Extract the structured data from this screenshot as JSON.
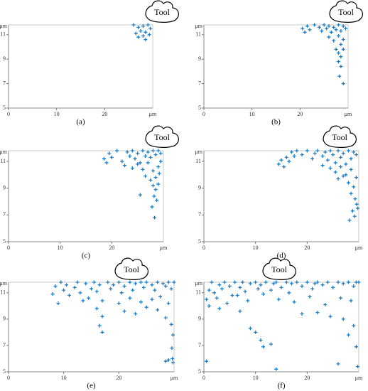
{
  "chart_data": [
    {
      "type": "scatter",
      "caption": "(a)",
      "annotation": "Tool",
      "xlabel": "μm",
      "ylabel": "μm",
      "xlim": [
        0,
        30
      ],
      "ylim": [
        5,
        11.8
      ],
      "xticks": [
        0,
        10,
        20
      ],
      "yticks": [
        5,
        7,
        9,
        11
      ],
      "color": "#1a7dc9",
      "x": [
        26,
        27,
        27.5,
        28,
        28.5,
        29,
        29.5,
        26.5,
        27,
        28,
        28.5,
        29.3
      ],
      "y": [
        11.8,
        11.6,
        11.3,
        11.7,
        11.2,
        11.8,
        11.5,
        11.1,
        10.8,
        10.9,
        10.6,
        11.0
      ]
    },
    {
      "type": "scatter",
      "caption": "(b)",
      "annotation": "Tool",
      "xlabel": "μm",
      "ylabel": "μm",
      "xlim": [
        0,
        30
      ],
      "ylim": [
        5,
        11.8
      ],
      "xticks": [
        0,
        10,
        20
      ],
      "yticks": [
        5,
        7,
        9,
        11
      ],
      "color": "#1a7dc9",
      "x": [
        20.5,
        21,
        21.5,
        22,
        23,
        24,
        24.5,
        25,
        25.5,
        26,
        26.5,
        27,
        27.5,
        28,
        28.5,
        29,
        29.5,
        26,
        27,
        28,
        28.5,
        29,
        27.5,
        28,
        28.5,
        29,
        28,
        28.5,
        28.2,
        29
      ],
      "y": [
        11.5,
        11.2,
        11.7,
        11.4,
        11.8,
        11.6,
        11.3,
        11.8,
        11.5,
        11.7,
        11.2,
        11.6,
        11.4,
        11.8,
        11.3,
        11.7,
        11.5,
        10.8,
        10.5,
        10.9,
        10.2,
        10.6,
        9.8,
        9.5,
        9.2,
        9.8,
        8.8,
        8.4,
        7.6,
        7.0
      ]
    },
    {
      "type": "scatter",
      "caption": "(c)",
      "annotation": "Tool",
      "xlabel": "μm",
      "ylabel": "μm",
      "xlim": [
        0,
        30
      ],
      "ylim": [
        5,
        11.8
      ],
      "xticks": [
        0,
        10,
        20
      ],
      "yticks": [
        5,
        7,
        9,
        11
      ],
      "color": "#1a7dc9",
      "x": [
        18.5,
        19,
        19.5,
        20,
        21,
        22,
        23,
        23.5,
        24,
        24.5,
        25,
        25.5,
        26,
        26.5,
        27,
        27.5,
        28,
        28.5,
        29,
        29.5,
        22.5,
        24,
        25,
        26,
        27,
        28,
        29,
        26.5,
        27.5,
        28.5,
        29.2,
        28,
        28.5,
        29,
        28.2,
        28.7,
        27.8,
        28.3,
        25.5,
        29.5
      ],
      "y": [
        11.2,
        10.9,
        11.6,
        11.3,
        11.8,
        11.0,
        11.7,
        11.4,
        11.8,
        11.2,
        11.6,
        10.9,
        11.8,
        11.4,
        11.7,
        11.3,
        11.8,
        11.5,
        11.8,
        11.6,
        10.7,
        10.5,
        10.8,
        10.4,
        10.9,
        10.3,
        10.6,
        9.9,
        9.6,
        9.8,
        10.1,
        9.2,
        8.9,
        9.3,
        8.4,
        8.1,
        7.6,
        6.8,
        8.5,
        11.0
      ]
    },
    {
      "type": "scatter",
      "caption": "(d)",
      "annotation": "Tool",
      "xlabel": "μm",
      "ylabel": "μm",
      "xlim": [
        0,
        30
      ],
      "ylim": [
        5,
        11.8
      ],
      "xticks": [
        0,
        10,
        20
      ],
      "yticks": [
        5,
        7,
        9,
        11
      ],
      "color": "#1a7dc9",
      "x": [
        14.5,
        15,
        15.5,
        16,
        16.5,
        17,
        17.5,
        18,
        19,
        20,
        21,
        21.5,
        22,
        23,
        23.5,
        24,
        24.5,
        25,
        25.5,
        26,
        26.5,
        27,
        27.5,
        28,
        28.5,
        29,
        29.5,
        23,
        24.5,
        25.5,
        26.5,
        27.5,
        28.5,
        29.5,
        26,
        27,
        28,
        29,
        28.5,
        29.3,
        29.6,
        29.8,
        28.8,
        29.2,
        28.2
      ],
      "y": [
        10.8,
        11.1,
        10.6,
        11.3,
        11.0,
        11.7,
        11.4,
        11.8,
        11.5,
        11.8,
        11.2,
        11.6,
        11.8,
        11.4,
        11.7,
        11.1,
        11.8,
        11.5,
        10.9,
        11.8,
        11.3,
        11.6,
        10.8,
        11.8,
        11.2,
        11.7,
        11.5,
        10.7,
        10.5,
        10.2,
        10.6,
        10.0,
        10.4,
        9.8,
        9.7,
        9.9,
        9.4,
        9.1,
        8.6,
        8.2,
        7.8,
        7.5,
        7.3,
        6.9,
        6.6
      ]
    },
    {
      "type": "scatter",
      "caption": "(e)",
      "annotation": "Tool",
      "xlabel": "μm",
      "ylabel": "μm",
      "xlim": [
        0,
        30
      ],
      "ylim": [
        5,
        11.8
      ],
      "xticks": [
        0,
        10,
        20
      ],
      "yticks": [
        5,
        7,
        9,
        11
      ],
      "color": "#1a7dc9",
      "x": [
        8,
        8.5,
        9,
        9.5,
        10,
        10.5,
        11,
        12,
        12.5,
        13,
        14,
        14.5,
        15,
        15.5,
        16,
        16.5,
        17,
        18,
        18.5,
        19,
        20,
        20.5,
        21,
        22,
        22.5,
        23,
        24,
        24.5,
        25,
        26,
        26.5,
        27,
        28,
        28.5,
        29,
        29.5,
        30,
        13.5,
        16,
        17,
        20,
        22,
        24,
        26,
        27.5,
        29,
        16.5,
        17,
        21,
        23,
        25,
        27,
        28.5,
        29.5,
        29.8,
        29.6,
        29.7,
        29,
        28.5,
        29.8
      ],
      "y": [
        10.9,
        11.5,
        10.2,
        11.8,
        11.2,
        11.6,
        10.8,
        11.4,
        11.8,
        11.0,
        11.7,
        10.6,
        11.3,
        11.8,
        11.1,
        11.6,
        10.4,
        11.8,
        11.3,
        11.6,
        11.8,
        11.0,
        11.5,
        11.8,
        11.2,
        11.7,
        11.8,
        11.4,
        11.8,
        11.6,
        11.2,
        11.8,
        11.7,
        11.5,
        11.8,
        11.3,
        11.8,
        10.4,
        9.8,
        9.2,
        10.2,
        10.6,
        10.3,
        10.5,
        10.7,
        10.2,
        8.5,
        8.0,
        9.6,
        9.4,
        9.9,
        9.7,
        9.1,
        8.6,
        7.8,
        6.8,
        6.0,
        5.9,
        5.8,
        5.7
      ]
    },
    {
      "type": "scatter",
      "caption": "(f)",
      "annotation": "Tool",
      "xlabel": "μm",
      "ylabel": "μm",
      "xlim": [
        0,
        30
      ],
      "ylim": [
        5,
        11.8
      ],
      "xticks": [
        0,
        10,
        20
      ],
      "yticks": [
        5,
        7,
        9,
        11
      ],
      "color": "#1a7dc9",
      "x": [
        0.5,
        1,
        1.5,
        2,
        3,
        3.5,
        4,
        5,
        5.5,
        6,
        7,
        7.5,
        8,
        9,
        10,
        10.5,
        11,
        12,
        13,
        13.5,
        14,
        15,
        16,
        16.5,
        17,
        18,
        19,
        20,
        21,
        21.5,
        22,
        23,
        24,
        25,
        26,
        27,
        28,
        29,
        29.5,
        30,
        1,
        2.5,
        4.5,
        6.5,
        8.5,
        11.5,
        14.5,
        17.5,
        20.5,
        23.5,
        26.5,
        28.5,
        3,
        7,
        19,
        22,
        24.5,
        27,
        9,
        10,
        11,
        11.5,
        13,
        29,
        28,
        29.5,
        0.5,
        14,
        29.8,
        26
      ],
      "y": [
        10.5,
        11.2,
        11.8,
        11.0,
        11.6,
        11.3,
        11.8,
        11.5,
        10.8,
        11.8,
        11.4,
        11.8,
        11.1,
        11.7,
        11.8,
        11.3,
        11.6,
        11.8,
        11.2,
        11.7,
        11.8,
        11.4,
        11.8,
        11.0,
        11.7,
        11.8,
        11.5,
        11.8,
        11.3,
        11.7,
        11.8,
        11.6,
        11.8,
        11.4,
        11.8,
        11.7,
        11.8,
        11.5,
        11.8,
        11.8,
        10.0,
        10.6,
        10.2,
        10.8,
        10.4,
        10.9,
        10.5,
        10.3,
        10.7,
        10.1,
        10.6,
        10.4,
        9.8,
        9.6,
        9.4,
        9.5,
        9.2,
        9.0,
        8.3,
        8.0,
        7.4,
        6.9,
        7.1,
        8.5,
        7.8,
        6.9,
        5.8,
        5.2,
        5.4,
        5.6
      ]
    }
  ]
}
